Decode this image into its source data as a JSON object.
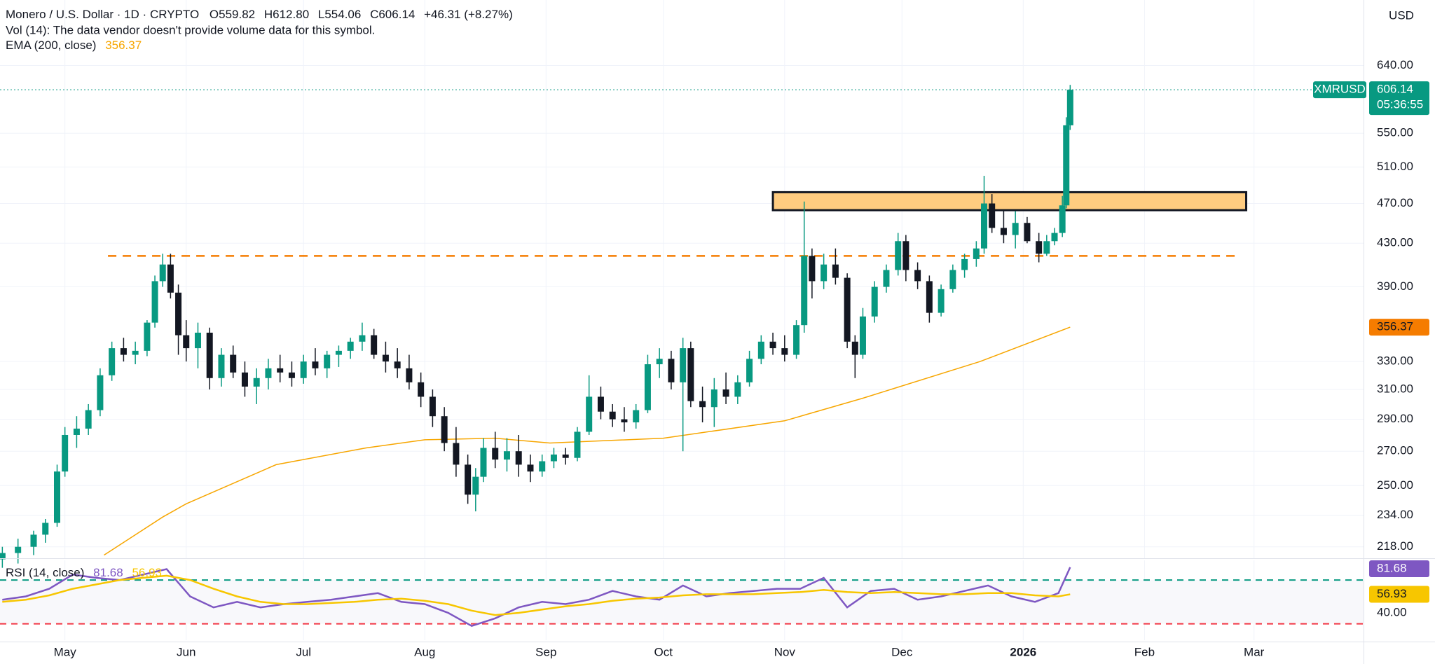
{
  "chart_data": [
    {
      "type": "candlestick",
      "title": "Monero / U.S. Dollar · 1D · CRYPTO",
      "ohlc": [
        "O559.82",
        "H612.80",
        "L554.06",
        "C606.14"
      ],
      "change": "+46.31 (+8.27%)",
      "note": "Vol (14): The data vendor doesn't provide volume data for this symbol.",
      "currency": "USD",
      "symbol": "XMRUSD",
      "countdown": "05:36:55",
      "up_color": "#089981",
      "down_color": "#131722",
      "log_scale": true,
      "grid": true,
      "xlim": [
        -16.6,
        332
      ],
      "xticks": [
        {
          "value": 0,
          "label": "May"
        },
        {
          "value": 31,
          "label": "Jun"
        },
        {
          "value": 61,
          "label": "Jul"
        },
        {
          "value": 92,
          "label": "Aug"
        },
        {
          "value": 123,
          "label": "Sep"
        },
        {
          "value": 153,
          "label": "Oct"
        },
        {
          "value": 184,
          "label": "Nov"
        },
        {
          "value": 214,
          "label": "Dec"
        },
        {
          "value": 245,
          "label": "2026"
        },
        {
          "value": 276,
          "label": "Feb"
        },
        {
          "value": 304,
          "label": "Mar"
        }
      ],
      "ylim": [
        212.5,
        741
      ],
      "yticks": [
        {
          "value": 218,
          "label": "218.00"
        },
        {
          "value": 234,
          "label": "234.00"
        },
        {
          "value": 250,
          "label": "250.00"
        },
        {
          "value": 270,
          "label": "270.00"
        },
        {
          "value": 290,
          "label": "290.00"
        },
        {
          "value": 310,
          "label": "310.00"
        },
        {
          "value": 330,
          "label": "330.00"
        },
        {
          "value": 390,
          "label": "390.00"
        },
        {
          "value": 430,
          "label": "430.00"
        },
        {
          "value": 470,
          "label": "470.00"
        },
        {
          "value": 510,
          "label": "510.00"
        },
        {
          "value": 550,
          "label": "550.00"
        },
        {
          "value": 640,
          "label": "640.00"
        }
      ],
      "x": [
        -16,
        -12,
        -8,
        -5,
        -2,
        0,
        3,
        6,
        9,
        12,
        15,
        18,
        21,
        23,
        25,
        27,
        29,
        31,
        34,
        37,
        40,
        43,
        46,
        49,
        52,
        55,
        58,
        61,
        64,
        67,
        70,
        73,
        76,
        79,
        82,
        85,
        88,
        91,
        94,
        97,
        100,
        103,
        105,
        107,
        110,
        113,
        116,
        119,
        122,
        125,
        128,
        131,
        134,
        137,
        140,
        143,
        146,
        149,
        152,
        155,
        158,
        160,
        163,
        166,
        169,
        172,
        175,
        178,
        181,
        184,
        187,
        189,
        191,
        194,
        197,
        200,
        202,
        204,
        207,
        210,
        213,
        215,
        218,
        221,
        224,
        227,
        230,
        233,
        235,
        237,
        240,
        243,
        246,
        249,
        251,
        253,
        255,
        256,
        257
      ],
      "open": [
        212,
        215,
        218,
        224,
        230,
        258,
        280,
        284,
        296,
        320,
        340,
        335,
        338,
        360,
        395,
        410,
        385,
        350,
        340,
        352,
        318,
        335,
        322,
        312,
        318,
        325,
        322,
        318,
        330,
        325,
        335,
        338,
        345,
        350,
        335,
        330,
        325,
        315,
        305,
        292,
        275,
        262,
        245,
        255,
        272,
        265,
        270,
        262,
        258,
        264,
        268,
        266,
        282,
        305,
        295,
        290,
        288,
        296,
        328,
        332,
        315,
        340,
        302,
        298,
        310,
        305,
        315,
        332,
        345,
        340,
        335,
        358,
        418,
        395,
        410,
        398,
        345,
        335,
        365,
        390,
        405,
        432,
        405,
        395,
        368,
        388,
        405,
        415,
        425,
        470,
        445,
        438,
        450,
        432,
        420,
        432,
        440,
        468,
        559.82
      ],
      "high": [
        218,
        222,
        226,
        232,
        262,
        285,
        292,
        300,
        325,
        345,
        348,
        345,
        362,
        400,
        420,
        420,
        392,
        362,
        360,
        356,
        340,
        342,
        330,
        325,
        332,
        335,
        330,
        335,
        340,
        338,
        342,
        348,
        360,
        355,
        345,
        340,
        335,
        322,
        310,
        298,
        285,
        268,
        260,
        278,
        282,
        278,
        280,
        268,
        268,
        272,
        272,
        285,
        320,
        312,
        300,
        298,
        300,
        335,
        340,
        338,
        348,
        345,
        312,
        318,
        322,
        320,
        338,
        350,
        352,
        350,
        362,
        472,
        425,
        420,
        425,
        402,
        350,
        372,
        395,
        410,
        440,
        438,
        412,
        400,
        392,
        410,
        420,
        432,
        500,
        480,
        462,
        462,
        456,
        440,
        438,
        445,
        478,
        570,
        612.8
      ],
      "low": [
        208,
        210,
        214,
        220,
        228,
        255,
        272,
        280,
        292,
        316,
        330,
        328,
        334,
        356,
        390,
        380,
        335,
        330,
        325,
        310,
        312,
        318,
        305,
        300,
        310,
        315,
        312,
        314,
        320,
        318,
        326,
        332,
        338,
        332,
        322,
        318,
        310,
        298,
        285,
        270,
        255,
        240,
        236,
        252,
        260,
        258,
        255,
        252,
        255,
        260,
        262,
        264,
        280,
        290,
        285,
        282,
        284,
        294,
        318,
        310,
        270,
        298,
        288,
        285,
        300,
        300,
        312,
        328,
        335,
        330,
        332,
        352,
        380,
        388,
        392,
        340,
        318,
        332,
        360,
        385,
        400,
        395,
        388,
        360,
        365,
        385,
        398,
        408,
        420,
        440,
        430,
        425,
        430,
        412,
        418,
        428,
        436,
        465,
        554.06
      ],
      "close": [
        215,
        218,
        224,
        230,
        258,
        280,
        284,
        296,
        320,
        340,
        335,
        338,
        360,
        395,
        410,
        385,
        350,
        340,
        352,
        318,
        335,
        322,
        312,
        318,
        325,
        322,
        318,
        330,
        325,
        335,
        338,
        345,
        350,
        335,
        330,
        325,
        315,
        305,
        292,
        275,
        262,
        245,
        255,
        272,
        265,
        270,
        262,
        258,
        264,
        268,
        266,
        282,
        305,
        295,
        290,
        288,
        296,
        328,
        332,
        315,
        340,
        302,
        298,
        310,
        305,
        315,
        332,
        345,
        340,
        335,
        358,
        418,
        395,
        410,
        398,
        345,
        335,
        365,
        390,
        405,
        432,
        405,
        395,
        368,
        388,
        405,
        415,
        425,
        470,
        445,
        438,
        450,
        432,
        420,
        432,
        440,
        468,
        559.82,
        606.14
      ],
      "ema": {
        "name": "EMA (200, close)",
        "color": "#f7a600",
        "x": [
          10,
          25,
          31,
          54,
          77,
          92,
          110,
          124,
          153,
          184,
          204,
          234,
          257
        ],
        "values": [
          214,
          233,
          240,
          262,
          272,
          277,
          278,
          275,
          278,
          289,
          304,
          330,
          356.37
        ]
      },
      "zones": [
        {
          "from": 181,
          "to": 302,
          "low": 463,
          "high": 482,
          "color": "#ffcc80"
        }
      ],
      "levels": [
        {
          "value": 418,
          "from": 11,
          "to": 300,
          "color": "#f57c00"
        }
      ]
    },
    {
      "type": "line",
      "title": "RSI (14, close)",
      "xlim": [
        -16.6,
        332
      ],
      "ylim": [
        15,
        88
      ],
      "yticks": [
        {
          "value": 40,
          "label": "40.00"
        }
      ],
      "bands": [
        {
          "value": 70,
          "color": "#089981"
        },
        {
          "value": 30,
          "color": "#f23645"
        }
      ],
      "x": [
        -16,
        -10,
        -4,
        2,
        8,
        14,
        20,
        26,
        32,
        38,
        44,
        50,
        56,
        62,
        68,
        74,
        80,
        86,
        92,
        98,
        104,
        110,
        116,
        122,
        128,
        134,
        140,
        146,
        152,
        158,
        164,
        170,
        176,
        182,
        188,
        194,
        200,
        206,
        212,
        218,
        224,
        230,
        236,
        242,
        248,
        254,
        257
      ],
      "series": [
        {
          "color": "#7e57c2",
          "values": [
            52,
            55,
            62,
            75,
            72,
            70,
            75,
            80,
            55,
            45,
            50,
            45,
            48,
            50,
            52,
            55,
            58,
            50,
            48,
            40,
            28,
            35,
            45,
            50,
            48,
            52,
            60,
            55,
            52,
            65,
            55,
            58,
            60,
            62,
            62,
            72,
            45,
            60,
            62,
            52,
            55,
            60,
            65,
            55,
            50,
            58,
            81.68
          ]
        },
        {
          "color": "#f7c600",
          "values": [
            50,
            52,
            56,
            62,
            66,
            70,
            72,
            74,
            70,
            62,
            55,
            50,
            48,
            48,
            49,
            50,
            52,
            53,
            51,
            48,
            42,
            38,
            40,
            43,
            46,
            48,
            51,
            53,
            54,
            56,
            57,
            57,
            57,
            58,
            59,
            61,
            59,
            58,
            59,
            58,
            57,
            57,
            58,
            58,
            56,
            55,
            56.93
          ]
        }
      ]
    }
  ]
}
